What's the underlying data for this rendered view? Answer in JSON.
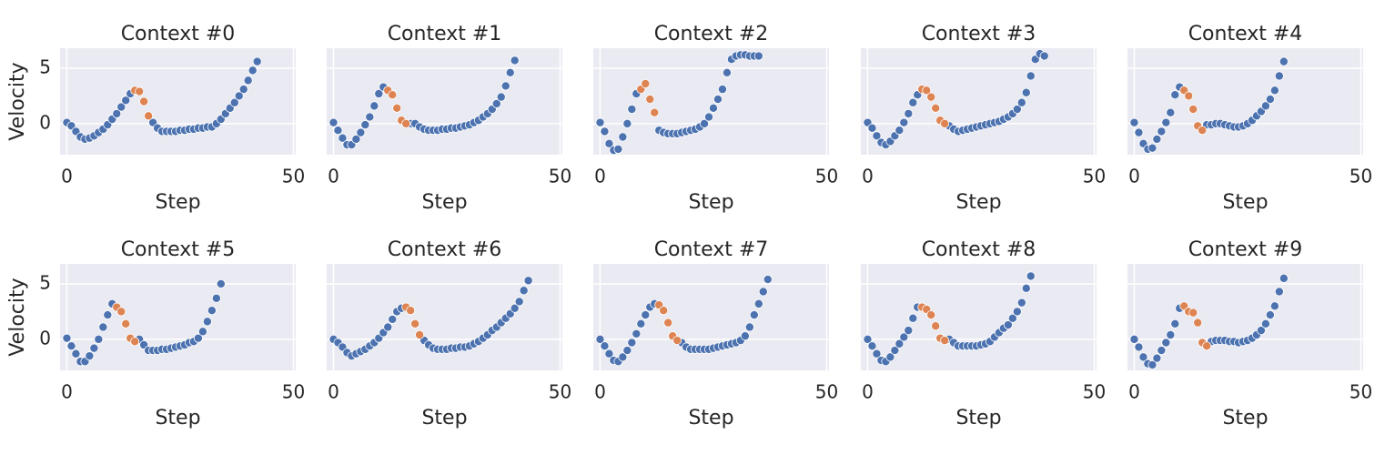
{
  "chart_data": [
    {
      "type": "scatter",
      "title": "Context #0",
      "xlabel": "Step",
      "ylabel": "Velocity",
      "show_ytick_labels": true,
      "xlim": [
        -1.5,
        50.5
      ],
      "xticks": [
        0,
        50
      ],
      "ylim": [
        -2.8,
        6.8
      ],
      "yticks": [
        0,
        5
      ],
      "grid": true,
      "series": [
        {
          "color": "#4c72b0",
          "x": [
            0,
            1,
            2,
            3,
            4,
            5,
            6,
            7,
            8,
            9,
            10,
            11,
            12,
            13,
            14,
            19,
            20,
            21,
            22,
            23,
            24,
            25,
            26,
            27,
            28,
            29,
            30,
            31,
            32,
            33,
            34,
            35,
            36,
            37,
            38,
            39,
            40,
            41,
            42
          ],
          "values": [
            0.1,
            -0.2,
            -0.7,
            -1.2,
            -1.4,
            -1.3,
            -1.1,
            -0.8,
            -0.5,
            -0.1,
            0.4,
            0.9,
            1.5,
            2.1,
            2.7,
            0.1,
            -0.4,
            -0.7,
            -0.7,
            -0.7,
            -0.7,
            -0.6,
            -0.6,
            -0.5,
            -0.5,
            -0.4,
            -0.4,
            -0.3,
            -0.3,
            0.0,
            0.4,
            0.9,
            1.4,
            1.9,
            2.5,
            3.1,
            3.9,
            4.8,
            5.6
          ]
        },
        {
          "color": "#dd8452",
          "x": [
            15,
            16,
            17,
            18
          ],
          "values": [
            3.0,
            2.9,
            2.0,
            0.7
          ]
        }
      ]
    },
    {
      "type": "scatter",
      "title": "Context #1",
      "xlabel": "Step",
      "show_ytick_labels": false,
      "xlim": [
        -1.5,
        50.5
      ],
      "xticks": [
        0,
        50
      ],
      "ylim": [
        -2.8,
        6.8
      ],
      "yticks": [
        0,
        5
      ],
      "grid": true,
      "series": [
        {
          "color": "#4c72b0",
          "x": [
            0,
            1,
            2,
            3,
            4,
            5,
            6,
            7,
            8,
            9,
            10,
            11,
            17,
            18,
            19,
            20,
            21,
            22,
            23,
            24,
            25,
            26,
            27,
            28,
            29,
            30,
            31,
            32,
            33,
            34,
            35,
            36,
            37,
            38,
            39,
            40
          ],
          "values": [
            0.1,
            -0.6,
            -1.3,
            -1.9,
            -1.9,
            -1.4,
            -0.8,
            -0.1,
            0.6,
            1.6,
            2.7,
            3.3,
            0.0,
            0.0,
            -0.3,
            -0.5,
            -0.6,
            -0.6,
            -0.6,
            -0.5,
            -0.5,
            -0.4,
            -0.4,
            -0.3,
            -0.2,
            -0.1,
            0.1,
            0.3,
            0.6,
            0.9,
            1.3,
            1.8,
            2.4,
            3.4,
            4.6,
            5.7
          ]
        },
        {
          "color": "#dd8452",
          "x": [
            12,
            13,
            14,
            15,
            16
          ],
          "values": [
            3.0,
            2.6,
            1.4,
            0.3,
            0.0
          ]
        }
      ]
    },
    {
      "type": "scatter",
      "title": "Context #2",
      "xlabel": "Step",
      "show_ytick_labels": false,
      "xlim": [
        -1.5,
        50.5
      ],
      "xticks": [
        0,
        50
      ],
      "ylim": [
        -2.8,
        6.8
      ],
      "yticks": [
        0,
        5
      ],
      "grid": true,
      "series": [
        {
          "color": "#4c72b0",
          "x": [
            0,
            1,
            2,
            3,
            4,
            5,
            6,
            7,
            8,
            13,
            14,
            15,
            16,
            17,
            18,
            19,
            20,
            21,
            22,
            23,
            24,
            25,
            26,
            27,
            28,
            29,
            30,
            31,
            32,
            33,
            34,
            35
          ],
          "values": [
            0.1,
            -0.7,
            -1.8,
            -2.4,
            -2.3,
            -1.2,
            0.0,
            1.3,
            2.7,
            -0.6,
            -0.8,
            -0.9,
            -0.9,
            -0.9,
            -0.8,
            -0.7,
            -0.6,
            -0.5,
            -0.3,
            0.0,
            0.6,
            1.4,
            2.2,
            3.1,
            4.6,
            5.8,
            6.1,
            6.2,
            6.2,
            6.1,
            6.1,
            6.1
          ]
        },
        {
          "color": "#dd8452",
          "x": [
            9,
            10,
            11,
            12
          ],
          "values": [
            3.1,
            3.6,
            2.2,
            1.0
          ]
        }
      ]
    },
    {
      "type": "scatter",
      "title": "Context #3",
      "xlabel": "Step",
      "show_ytick_labels": false,
      "xlim": [
        -1.5,
        50.5
      ],
      "xticks": [
        0,
        50
      ],
      "ylim": [
        -2.8,
        6.8
      ],
      "yticks": [
        0,
        5
      ],
      "grid": true,
      "series": [
        {
          "color": "#4c72b0",
          "x": [
            0,
            1,
            2,
            3,
            4,
            5,
            6,
            7,
            8,
            9,
            10,
            11,
            18,
            19,
            20,
            21,
            22,
            23,
            24,
            25,
            26,
            27,
            28,
            29,
            30,
            31,
            32,
            33,
            34,
            35,
            36,
            37,
            38,
            39
          ],
          "values": [
            0.1,
            -0.4,
            -1.1,
            -1.7,
            -1.9,
            -1.6,
            -1.1,
            -0.6,
            0.1,
            0.9,
            1.9,
            2.6,
            -0.2,
            -0.5,
            -0.7,
            -0.6,
            -0.5,
            -0.4,
            -0.3,
            -0.2,
            -0.1,
            0.0,
            0.1,
            0.2,
            0.4,
            0.6,
            0.9,
            1.3,
            1.9,
            2.8,
            4.3,
            5.8,
            6.3,
            6.1
          ]
        },
        {
          "color": "#dd8452",
          "x": [
            12,
            13,
            14,
            15,
            16,
            17
          ],
          "values": [
            3.1,
            3.0,
            2.4,
            1.4,
            0.3,
            0.0
          ]
        }
      ]
    },
    {
      "type": "scatter",
      "title": "Context #4",
      "xlabel": "Step",
      "show_ytick_labels": false,
      "xlim": [
        -1.5,
        50.5
      ],
      "xticks": [
        0,
        50
      ],
      "ylim": [
        -2.8,
        6.8
      ],
      "yticks": [
        0,
        5
      ],
      "grid": true,
      "series": [
        {
          "color": "#4c72b0",
          "x": [
            0,
            1,
            2,
            3,
            4,
            5,
            6,
            7,
            8,
            9,
            10,
            16,
            17,
            18,
            19,
            20,
            21,
            22,
            23,
            24,
            25,
            26,
            27,
            28,
            29,
            30,
            31,
            32,
            33
          ],
          "values": [
            0.1,
            -0.8,
            -1.8,
            -2.3,
            -2.2,
            -1.4,
            -0.7,
            0.1,
            1.0,
            2.6,
            3.3,
            -0.1,
            -0.1,
            0.0,
            0.0,
            -0.1,
            -0.2,
            -0.3,
            -0.3,
            -0.2,
            0.0,
            0.3,
            0.7,
            1.1,
            1.6,
            2.2,
            3.0,
            4.3,
            5.6
          ]
        },
        {
          "color": "#dd8452",
          "x": [
            11,
            12,
            13,
            14,
            15
          ],
          "values": [
            3.0,
            2.5,
            1.3,
            -0.2,
            -0.6
          ]
        }
      ]
    },
    {
      "type": "scatter",
      "title": "Context #5",
      "xlabel": "Step",
      "ylabel": "Velocity",
      "show_ytick_labels": true,
      "xlim": [
        -1.5,
        50.5
      ],
      "xticks": [
        0,
        50
      ],
      "ylim": [
        -2.8,
        6.8
      ],
      "yticks": [
        0,
        5
      ],
      "grid": true,
      "series": [
        {
          "color": "#4c72b0",
          "x": [
            0,
            1,
            2,
            3,
            4,
            5,
            6,
            7,
            8,
            9,
            10,
            16,
            17,
            18,
            19,
            20,
            21,
            22,
            23,
            24,
            25,
            26,
            27,
            28,
            29,
            30,
            31,
            32,
            33,
            34
          ],
          "values": [
            0.1,
            -0.6,
            -1.3,
            -2.0,
            -2.0,
            -1.5,
            -0.8,
            0.0,
            1.1,
            2.2,
            3.2,
            0.0,
            -0.5,
            -1.0,
            -1.0,
            -1.0,
            -0.9,
            -0.9,
            -0.8,
            -0.7,
            -0.6,
            -0.5,
            -0.3,
            -0.2,
            0.1,
            0.7,
            1.6,
            2.6,
            3.7,
            5.0
          ]
        },
        {
          "color": "#dd8452",
          "x": [
            11,
            12,
            13,
            14,
            15
          ],
          "values": [
            2.9,
            2.5,
            1.4,
            0.1,
            -0.2
          ]
        }
      ]
    },
    {
      "type": "scatter",
      "title": "Context #6",
      "xlabel": "Step",
      "show_ytick_labels": false,
      "xlim": [
        -1.5,
        50.5
      ],
      "xticks": [
        0,
        50
      ],
      "ylim": [
        -2.8,
        6.8
      ],
      "yticks": [
        0,
        5
      ],
      "grid": true,
      "series": [
        {
          "color": "#4c72b0",
          "x": [
            0,
            1,
            2,
            3,
            4,
            5,
            6,
            7,
            8,
            9,
            10,
            11,
            12,
            13,
            14,
            15,
            20,
            21,
            22,
            23,
            24,
            25,
            26,
            27,
            28,
            29,
            30,
            31,
            32,
            33,
            34,
            35,
            36,
            37,
            38,
            39,
            40,
            41,
            42,
            43
          ],
          "values": [
            0.0,
            -0.3,
            -0.7,
            -1.2,
            -1.5,
            -1.3,
            -1.1,
            -0.9,
            -0.6,
            -0.3,
            0.1,
            0.6,
            1.1,
            1.8,
            2.5,
            2.8,
            -0.1,
            -0.5,
            -0.8,
            -0.9,
            -0.9,
            -0.9,
            -0.8,
            -0.8,
            -0.7,
            -0.7,
            -0.6,
            -0.4,
            -0.2,
            0.1,
            0.4,
            0.8,
            1.1,
            1.5,
            1.9,
            2.3,
            2.8,
            3.4,
            4.4,
            5.3
          ]
        },
        {
          "color": "#dd8452",
          "x": [
            16,
            17,
            18,
            19
          ],
          "values": [
            2.9,
            2.6,
            1.4,
            0.4
          ]
        }
      ]
    },
    {
      "type": "scatter",
      "title": "Context #7",
      "xlabel": "Step",
      "show_ytick_labels": false,
      "xlim": [
        -1.5,
        50.5
      ],
      "xticks": [
        0,
        50
      ],
      "ylim": [
        -2.8,
        6.8
      ],
      "yticks": [
        0,
        5
      ],
      "grid": true,
      "series": [
        {
          "color": "#4c72b0",
          "x": [
            0,
            1,
            2,
            3,
            4,
            5,
            6,
            7,
            8,
            9,
            10,
            11,
            12,
            18,
            19,
            20,
            21,
            22,
            23,
            24,
            25,
            26,
            27,
            28,
            29,
            30,
            31,
            32,
            33,
            34,
            35,
            36,
            37
          ],
          "values": [
            0.0,
            -0.6,
            -1.3,
            -1.9,
            -2.0,
            -1.6,
            -1.0,
            -0.3,
            0.5,
            1.4,
            2.2,
            2.9,
            3.2,
            -0.3,
            -0.7,
            -0.9,
            -0.9,
            -0.9,
            -0.9,
            -0.9,
            -0.8,
            -0.7,
            -0.6,
            -0.5,
            -0.4,
            -0.3,
            -0.1,
            0.3,
            1.1,
            2.2,
            3.2,
            4.3,
            5.4
          ]
        },
        {
          "color": "#dd8452",
          "x": [
            13,
            14,
            15,
            16,
            17
          ],
          "values": [
            3.1,
            2.6,
            1.5,
            0.3,
            -0.1
          ]
        }
      ]
    },
    {
      "type": "scatter",
      "title": "Context #8",
      "xlabel": "Step",
      "show_ytick_labels": false,
      "xlim": [
        -1.5,
        50.5
      ],
      "xticks": [
        0,
        50
      ],
      "ylim": [
        -2.8,
        6.8
      ],
      "yticks": [
        0,
        5
      ],
      "grid": true,
      "series": [
        {
          "color": "#4c72b0",
          "x": [
            0,
            1,
            2,
            3,
            4,
            5,
            6,
            7,
            8,
            9,
            10,
            11,
            18,
            19,
            20,
            21,
            22,
            23,
            24,
            25,
            26,
            27,
            28,
            29,
            30,
            31,
            32,
            33,
            34,
            35,
            36
          ],
          "values": [
            0.0,
            -0.6,
            -1.3,
            -1.9,
            -2.0,
            -1.6,
            -1.0,
            -0.4,
            0.2,
            0.8,
            1.9,
            2.9,
            0.0,
            -0.3,
            -0.6,
            -0.6,
            -0.6,
            -0.6,
            -0.6,
            -0.5,
            -0.4,
            -0.2,
            0.2,
            0.6,
            1.0,
            1.3,
            1.9,
            2.5,
            3.3,
            4.6,
            5.7
          ]
        },
        {
          "color": "#dd8452",
          "x": [
            12,
            13,
            14,
            15,
            16,
            17
          ],
          "values": [
            2.9,
            2.7,
            2.2,
            1.2,
            0.1,
            -0.1
          ]
        }
      ]
    },
    {
      "type": "scatter",
      "title": "Context #9",
      "xlabel": "Step",
      "show_ytick_labels": false,
      "xlim": [
        -1.5,
        50.5
      ],
      "xticks": [
        0,
        50
      ],
      "ylim": [
        -2.8,
        6.8
      ],
      "yticks": [
        0,
        5
      ],
      "grid": true,
      "series": [
        {
          "color": "#4c72b0",
          "x": [
            0,
            1,
            2,
            3,
            4,
            5,
            6,
            7,
            8,
            9,
            10,
            17,
            18,
            19,
            20,
            21,
            22,
            23,
            24,
            25,
            26,
            27,
            28,
            29,
            30,
            31,
            32,
            33
          ],
          "values": [
            0.0,
            -0.7,
            -1.6,
            -2.2,
            -2.3,
            -1.7,
            -1.0,
            -0.3,
            0.4,
            1.4,
            2.8,
            -0.2,
            -0.1,
            -0.1,
            -0.1,
            -0.2,
            -0.2,
            -0.3,
            -0.2,
            -0.1,
            0.1,
            0.4,
            0.8,
            1.4,
            2.2,
            3.0,
            4.3,
            5.5
          ]
        },
        {
          "color": "#dd8452",
          "x": [
            11,
            12,
            13,
            14,
            15,
            16
          ],
          "values": [
            3.0,
            2.5,
            2.4,
            1.5,
            -0.3,
            -0.6
          ]
        }
      ]
    }
  ]
}
